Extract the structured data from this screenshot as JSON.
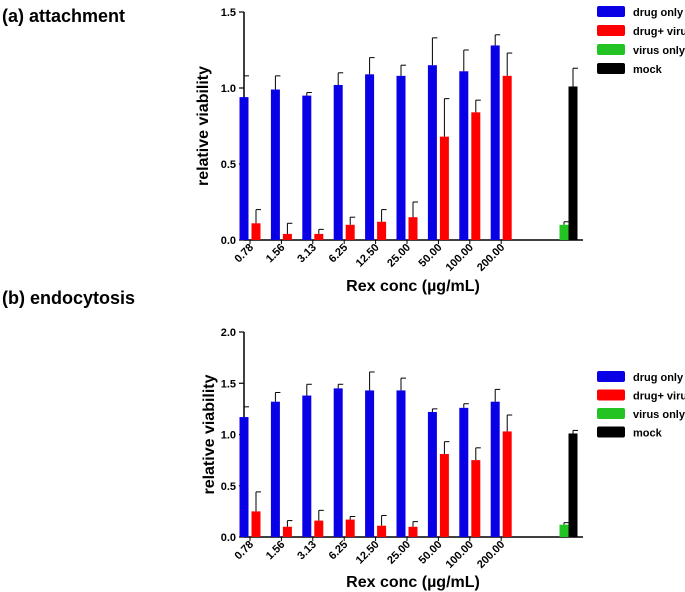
{
  "colors": {
    "drug_only": "#0a00e6",
    "drug_virus": "#ff0000",
    "virus_only": "#22c322",
    "mock": "#000000"
  },
  "chart_data": [
    {
      "panel": "(a)",
      "title": "attachment",
      "type": "bar",
      "xlabel": "Rex conc (µg/mL)",
      "ylabel": "relative viability",
      "ylim": [
        0,
        1.5
      ],
      "yticks": [
        "0.0",
        "0.5",
        "1.0",
        "1.5"
      ],
      "categories": [
        "0.78",
        "1.56",
        "3.13",
        "6.25",
        "12.50",
        "25.00",
        "50.00",
        "100.00",
        "200.00"
      ],
      "series": [
        {
          "name": "drug only",
          "key": "drug_only",
          "values": [
            0.94,
            0.99,
            0.95,
            1.02,
            1.09,
            1.08,
            1.15,
            1.11,
            1.28
          ],
          "errors": [
            0.14,
            0.09,
            0.02,
            0.08,
            0.11,
            0.07,
            0.18,
            0.14,
            0.07
          ]
        },
        {
          "name": "drug+ virus",
          "key": "drug_virus",
          "values": [
            0.11,
            0.04,
            0.04,
            0.1,
            0.12,
            0.15,
            0.68,
            0.84,
            1.08
          ],
          "errors": [
            0.09,
            0.07,
            0.03,
            0.05,
            0.08,
            0.1,
            0.25,
            0.08,
            0.15
          ]
        }
      ],
      "controls": [
        {
          "name": "virus only",
          "key": "virus_only",
          "value": 0.1,
          "error": 0.02
        },
        {
          "name": "mock",
          "key": "mock",
          "value": 1.01,
          "error": 0.12
        }
      ],
      "legend": [
        "drug only",
        "drug+ virus",
        "virus only",
        "mock"
      ]
    },
    {
      "panel": "(b)",
      "title": "endocytosis",
      "type": "bar",
      "xlabel": "Rex conc (µg/mL)",
      "ylabel": "relative viability",
      "ylim": [
        0,
        2.0
      ],
      "yticks": [
        "0.0",
        "0.5",
        "1.0",
        "1.5",
        "2.0"
      ],
      "categories": [
        "0.78",
        "1.56",
        "3.13",
        "6.25",
        "12.50",
        "25.00",
        "50.00",
        "100.00",
        "200.00"
      ],
      "series": [
        {
          "name": "drug only",
          "key": "drug_only",
          "values": [
            1.17,
            1.32,
            1.38,
            1.45,
            1.43,
            1.43,
            1.22,
            1.26,
            1.32
          ],
          "errors": [
            0.1,
            0.09,
            0.11,
            0.04,
            0.18,
            0.12,
            0.03,
            0.04,
            0.12
          ]
        },
        {
          "name": "drug+ virus",
          "key": "drug_virus",
          "values": [
            0.25,
            0.1,
            0.16,
            0.17,
            0.11,
            0.1,
            0.81,
            0.75,
            1.03
          ],
          "errors": [
            0.19,
            0.06,
            0.1,
            0.03,
            0.1,
            0.05,
            0.12,
            0.12,
            0.16
          ]
        }
      ],
      "controls": [
        {
          "name": "virus only",
          "key": "virus_only",
          "value": 0.12,
          "error": 0.02
        },
        {
          "name": "mock",
          "key": "mock",
          "value": 1.01,
          "error": 0.03
        }
      ],
      "legend": [
        "drug only",
        "drug+ virus",
        "virus only",
        "mock"
      ]
    }
  ]
}
